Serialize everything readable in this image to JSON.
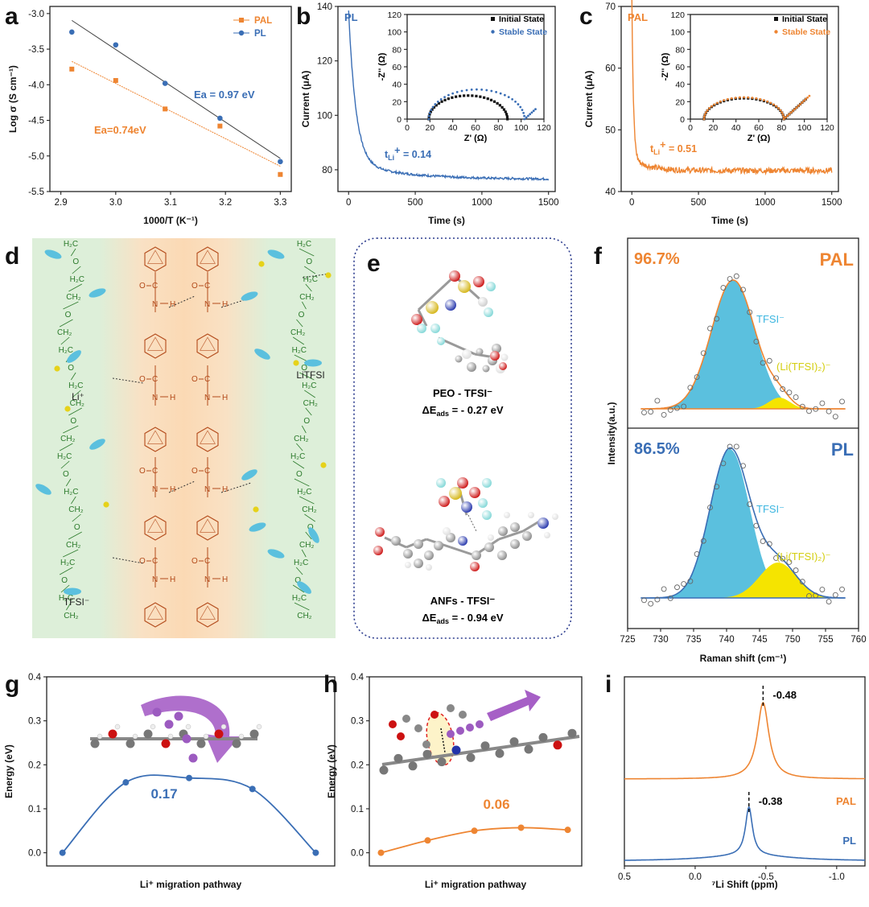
{
  "colors": {
    "orange": "#EE8532",
    "blue": "#3A6EB5",
    "green_bg": "#DDEFD9",
    "orange_bg": "#FBD9B4",
    "cyan_fill": "#5BC0DE",
    "yellow_fill": "#F5E400",
    "peo_green": "#2B7A2B",
    "anf_brown": "#B34A1A"
  },
  "panels": {
    "a": {
      "letter": "a"
    },
    "b": {
      "letter": "b"
    },
    "c": {
      "letter": "c"
    },
    "d": {
      "letter": "d"
    },
    "e": {
      "letter": "e"
    },
    "f": {
      "letter": "f"
    },
    "g": {
      "letter": "g"
    },
    "h": {
      "letter": "h"
    },
    "i": {
      "letter": "i"
    }
  },
  "chart_data": [
    {
      "id": "a",
      "type": "scatter",
      "xlabel": "1000/T (K⁻¹)",
      "ylabel": "Log σ (S cm⁻¹)",
      "xlim": [
        2.88,
        3.32
      ],
      "ylim": [
        -5.5,
        -2.9
      ],
      "xticks": [
        "2.9",
        "3.0",
        "3.1",
        "3.2",
        "3.3"
      ],
      "yticks": [
        "-3.0",
        "-3.5",
        "-4.0",
        "-4.5",
        "-5.0",
        "-5.5"
      ],
      "series": [
        {
          "name": "PAL",
          "x": [
            2.92,
            3.0,
            3.09,
            3.19,
            3.3
          ],
          "y": [
            -3.78,
            -3.94,
            -4.34,
            -4.58,
            -5.26
          ]
        },
        {
          "name": "PL",
          "x": [
            2.92,
            3.0,
            3.09,
            3.19,
            3.3
          ],
          "y": [
            -3.26,
            -3.44,
            -3.98,
            -4.47,
            -5.08
          ]
        }
      ],
      "annotations": [
        "Ea = 0.97 eV",
        "Ea=0.74eV"
      ]
    },
    {
      "id": "b",
      "type": "line",
      "label": "PL",
      "xlabel": "Time (s)",
      "ylabel": "Current (μA)",
      "xlim": [
        -80,
        1550
      ],
      "ylim": [
        72,
        140
      ],
      "xticks": [
        "0",
        "500",
        "1000",
        "1500"
      ],
      "yticks": [
        "80",
        "100",
        "120",
        "140"
      ],
      "annotation": "t",
      "annotation_sub": "Li",
      "annotation_rest": "+ = 0.14",
      "inset": {
        "xlabel": "Z' (Ω)",
        "ylabel": "-Z'' (Ω)",
        "xlim": [
          0,
          120
        ],
        "ylim": [
          0,
          120
        ],
        "xticks": [
          "0",
          "20",
          "40",
          "60",
          "80",
          "100",
          "120"
        ],
        "yticks": [
          "0",
          "20",
          "40",
          "60",
          "80",
          "100",
          "120"
        ],
        "legend": [
          "Initial State",
          "Stable State"
        ]
      }
    },
    {
      "id": "c",
      "type": "line",
      "label": "PAL",
      "xlabel": "Time (s)",
      "ylabel": "Current (μA)",
      "xlim": [
        -80,
        1550
      ],
      "ylim": [
        40,
        70
      ],
      "xticks": [
        "0",
        "500",
        "1000",
        "1500"
      ],
      "yticks": [
        "40",
        "50",
        "60",
        "70"
      ],
      "annotation": "t",
      "annotation_sub": "Li",
      "annotation_rest": "+ = 0.51",
      "inset": {
        "xlabel": "Z' (Ω)",
        "ylabel": "-Z'' (Ω)",
        "xlim": [
          0,
          120
        ],
        "ylim": [
          0,
          120
        ],
        "xticks": [
          "0",
          "20",
          "40",
          "60",
          "80",
          "100",
          "120"
        ],
        "yticks": [
          "0",
          "20",
          "40",
          "60",
          "80",
          "100",
          "120"
        ],
        "legend": [
          "Initial State",
          "Stable State"
        ]
      }
    },
    {
      "id": "f",
      "type": "area",
      "xlabel": "Raman shift (cm⁻¹)",
      "ylabel": "Intensity(a.u.)",
      "xlim": [
        725,
        760
      ],
      "xticks": [
        "725",
        "730",
        "735",
        "740",
        "745",
        "750",
        "755",
        "760"
      ],
      "top": {
        "name": "PAL",
        "percent": "96.7%",
        "peaks": [
          {
            "label": "TFSI⁻",
            "center": 741,
            "sigma": 3.3
          },
          {
            "label": "(Li(TFSI)₂)⁻",
            "center": 748,
            "sigma": 1.6
          }
        ]
      },
      "bottom": {
        "name": "PL",
        "percent": "86.5%",
        "peaks": [
          {
            "label": "TFSI⁻",
            "center": 740.5,
            "sigma": 3.0
          },
          {
            "label": "(Li(TFSI)₂)⁻",
            "center": 747.8,
            "sigma": 2.8
          }
        ]
      }
    },
    {
      "id": "g",
      "type": "line",
      "xlabel": "Li⁺ migration pathway",
      "ylabel": "Energy (eV)",
      "ylim": [
        -0.03,
        0.4
      ],
      "yticks": [
        "0.0",
        "0.1",
        "0.2",
        "0.3",
        "0.4"
      ],
      "x": [
        0,
        1,
        2,
        3,
        4
      ],
      "y": [
        0.0,
        0.16,
        0.17,
        0.145,
        0.0
      ],
      "annotation": "0.17"
    },
    {
      "id": "h",
      "type": "line",
      "xlabel": "Li⁺ migration pathway",
      "ylabel": "Energy (eV)",
      "ylim": [
        -0.03,
        0.4
      ],
      "yticks": [
        "0.0",
        "0.1",
        "0.2",
        "0.3",
        "0.4"
      ],
      "x": [
        0,
        1,
        2,
        3,
        4
      ],
      "y": [
        0.0,
        0.028,
        0.05,
        0.057,
        0.052
      ],
      "annotation": "0.06"
    },
    {
      "id": "i",
      "type": "line",
      "xlabel": "⁷Li Shift (ppm)",
      "xlim": [
        0.5,
        -1.2
      ],
      "xticks": [
        "0.5",
        "0.0",
        "-0.5",
        "-1.0"
      ],
      "series": [
        {
          "name": "PAL",
          "peak": -0.48,
          "peak_label": "-0.48"
        },
        {
          "name": "PL",
          "peak": -0.38,
          "peak_label": "-0.38"
        }
      ]
    }
  ],
  "panel_d": {
    "labels": {
      "li": "Li⁺",
      "litfsi": "LiTFSI",
      "tfsi": "TFSI⁻"
    },
    "peo_groups": [
      "H₂C",
      "O",
      "H₂C",
      "CH₂",
      "O",
      "CH₂"
    ],
    "amide_labels": {
      "o": "O",
      "c": "C",
      "n": "N",
      "h": "H"
    }
  },
  "panel_e": {
    "caption1_line1": "PEO - TFSI⁻",
    "caption1_line2": "ΔE",
    "caption1_sub": "ads",
    "caption1_rest": " = - 0.27 eV",
    "caption2_line1": "ANFs - TFSI⁻",
    "caption2_line2": "ΔE",
    "caption2_sub": "ads",
    "caption2_rest": " = - 0.94 eV"
  }
}
